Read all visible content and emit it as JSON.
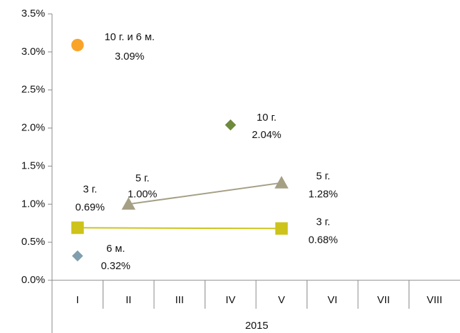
{
  "chart_data": {
    "type": "line",
    "categories": [
      "I",
      "II",
      "III",
      "IV",
      "V",
      "VI",
      "VII",
      "VIII"
    ],
    "group_label": "2015",
    "ylim": [
      0,
      3.5
    ],
    "yticks": [
      {
        "value": 0,
        "label": "0.0%"
      },
      {
        "value": 0.5,
        "label": "0.5%"
      },
      {
        "value": 1,
        "label": "1.0%"
      },
      {
        "value": 1.5,
        "label": "1.5%"
      },
      {
        "value": 2,
        "label": "2.0%"
      },
      {
        "value": 2.5,
        "label": "2.5%"
      },
      {
        "value": 3,
        "label": "3.0%"
      },
      {
        "value": 3.5,
        "label": "3.5%"
      }
    ],
    "series": [
      {
        "name": "10 г. и 6 м.",
        "color": "#f9a428",
        "marker": "circle",
        "line": false,
        "x": [
          "I"
        ],
        "values": [
          3.09
        ],
        "value_labels": [
          "3.09%"
        ]
      },
      {
        "name": "6 м.",
        "color": "#7f9fae",
        "marker": "diamond",
        "line": false,
        "x": [
          "I"
        ],
        "values": [
          0.32
        ],
        "value_labels": [
          "0.32%"
        ]
      },
      {
        "name": "3 г.",
        "color": "#cdc31b",
        "marker": "square",
        "line": true,
        "x": [
          "I",
          "V"
        ],
        "values": [
          0.69,
          0.68
        ],
        "value_labels": [
          "0.69%",
          "0.68%"
        ]
      },
      {
        "name": "5 г.",
        "color": "#a59f84",
        "marker": "triangle",
        "line": true,
        "x": [
          "II",
          "V"
        ],
        "values": [
          1.0,
          1.28
        ],
        "value_labels": [
          "1.00%",
          "1.28%"
        ]
      },
      {
        "name": "10 г.",
        "color": "#6e8b3d",
        "marker": "diamond",
        "line": false,
        "x": [
          "IV"
        ],
        "values": [
          2.04
        ],
        "value_labels": [
          "2.04%"
        ]
      }
    ]
  }
}
